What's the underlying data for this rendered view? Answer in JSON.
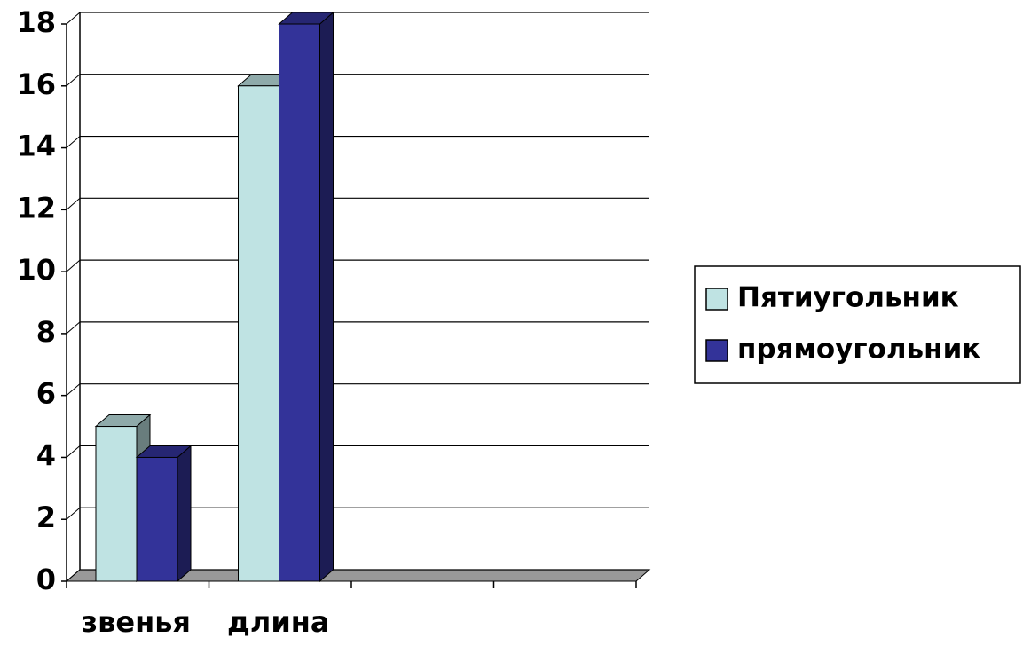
{
  "chart_data": {
    "type": "bar3d",
    "categories": [
      "звенья",
      "длина",
      null,
      null
    ],
    "series": [
      {
        "name": "Пятиугольник",
        "color": "#bfe3e3",
        "values": [
          5,
          16,
          null,
          null
        ]
      },
      {
        "name": "прямоугольник",
        "color": "#333399",
        "values": [
          4,
          18,
          null,
          null
        ]
      }
    ],
    "ylim": [
      0,
      18
    ],
    "yticks": [
      0,
      2,
      4,
      6,
      8,
      10,
      12,
      14,
      16,
      18
    ],
    "grid": true,
    "legend": "right"
  }
}
